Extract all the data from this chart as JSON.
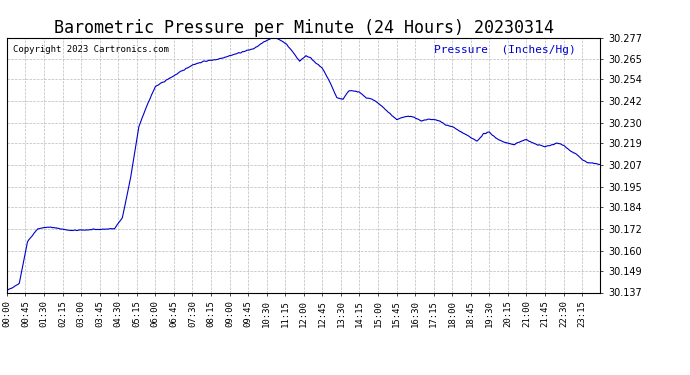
{
  "title": "Barometric Pressure per Minute (24 Hours) 20230314",
  "copyright_text": "Copyright 2023 Cartronics.com",
  "ylabel": "Pressure  (Inches/Hg)",
  "ylabel_color": "#0000cc",
  "line_color": "#0000cc",
  "background_color": "#ffffff",
  "grid_color": "#aaaaaa",
  "title_color": "#000000",
  "title_fontsize": 12,
  "ylim_min": 30.137,
  "ylim_max": 30.277,
  "yticks": [
    30.137,
    30.149,
    30.16,
    30.172,
    30.184,
    30.195,
    30.207,
    30.219,
    30.23,
    30.242,
    30.254,
    30.265,
    30.277
  ],
  "xtick_labels": [
    "00:00",
    "00:45",
    "01:30",
    "02:15",
    "03:00",
    "03:45",
    "04:30",
    "05:15",
    "06:00",
    "06:45",
    "07:30",
    "08:15",
    "09:00",
    "09:45",
    "10:30",
    "11:15",
    "12:00",
    "12:45",
    "13:30",
    "14:15",
    "15:00",
    "15:45",
    "16:30",
    "17:15",
    "18:00",
    "18:45",
    "19:30",
    "20:15",
    "21:00",
    "21:45",
    "22:30",
    "23:15"
  ],
  "keypoints_x": [
    0,
    30,
    50,
    75,
    100,
    130,
    155,
    260,
    280,
    300,
    320,
    340,
    360,
    390,
    420,
    450,
    480,
    510,
    540,
    570,
    600,
    620,
    635,
    645,
    660,
    675,
    690,
    710,
    725,
    735,
    750,
    765,
    780,
    790,
    800,
    815,
    830,
    855,
    870,
    885,
    900,
    915,
    930,
    945,
    960,
    975,
    990,
    1005,
    1020,
    1035,
    1050,
    1065,
    1080,
    1095,
    1110,
    1125,
    1140,
    1155,
    1170,
    1185,
    1200,
    1215,
    1230,
    1245,
    1260,
    1275,
    1290,
    1305,
    1320,
    1335,
    1350,
    1365,
    1380,
    1395,
    1410,
    1425,
    1439
  ],
  "keypoints_y": [
    30.138,
    30.142,
    30.165,
    30.172,
    30.173,
    30.172,
    30.171,
    30.172,
    30.178,
    30.2,
    30.228,
    30.24,
    30.25,
    30.254,
    30.258,
    30.262,
    30.264,
    30.265,
    30.267,
    30.269,
    30.271,
    30.274,
    30.276,
    30.277,
    30.276,
    30.274,
    30.27,
    30.264,
    30.267,
    30.266,
    30.263,
    30.26,
    30.254,
    30.249,
    30.244,
    30.243,
    30.248,
    30.247,
    30.244,
    30.243,
    30.241,
    30.238,
    30.235,
    30.232,
    30.233,
    30.234,
    30.233,
    30.231,
    30.232,
    30.232,
    30.231,
    30.229,
    30.228,
    30.226,
    30.224,
    30.222,
    30.22,
    30.224,
    30.225,
    30.222,
    30.22,
    30.219,
    30.218,
    30.22,
    30.221,
    30.219,
    30.218,
    30.217,
    30.218,
    30.219,
    30.218,
    30.215,
    30.213,
    30.21,
    30.208,
    30.208,
    30.207
  ]
}
